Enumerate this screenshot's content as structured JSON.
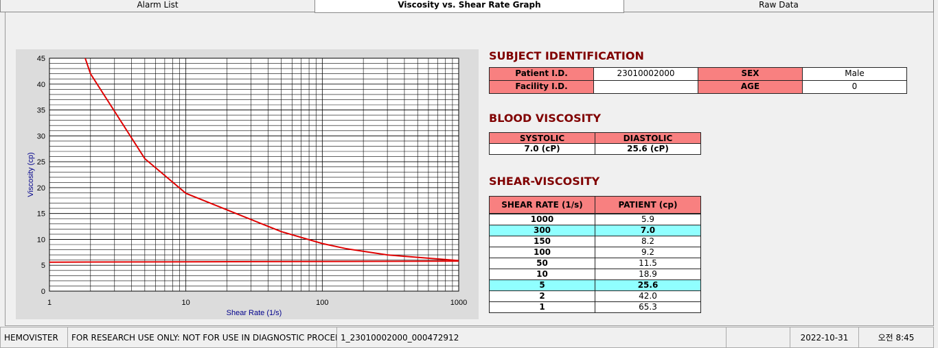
{
  "tabs": {
    "items": [
      "Alarm List",
      "Viscosity vs. Shear Rate Graph",
      "Raw Data"
    ],
    "active": 1
  },
  "chart_data": {
    "type": "line",
    "xlabel": "Shear Rate (1/s)",
    "ylabel": "Viscosity (cp)",
    "xscale": "log",
    "xlim": [
      1,
      1000
    ],
    "xticks": [
      1,
      10,
      100,
      1000
    ],
    "ylim": [
      0,
      45
    ],
    "yticks": [
      0,
      5,
      10,
      15,
      20,
      25,
      30,
      35,
      40,
      45
    ],
    "grid": true,
    "series": [
      {
        "color": "#e00000",
        "x": [
          1,
          2,
          5,
          10,
          50,
          100,
          150,
          300,
          1000
        ],
        "values": [
          65.3,
          42.0,
          25.6,
          18.9,
          11.5,
          9.2,
          8.2,
          7.0,
          5.9
        ]
      },
      {
        "color": "#e00000",
        "x": [
          1,
          1000
        ],
        "values": [
          5.6,
          5.8
        ]
      }
    ]
  },
  "subject": {
    "title": "SUBJECT IDENTIFICATION",
    "fields": [
      {
        "label": "Patient I.D.",
        "value": "23010002000"
      },
      {
        "label": "SEX",
        "value": "Male"
      },
      {
        "label": "Facility I.D."
      },
      {
        "label": "AGE",
        "value": 0
      }
    ]
  },
  "blood": {
    "title": "BLOOD VISCOSITY",
    "headers": [
      "SYSTOLIC",
      "DIASTOLIC"
    ],
    "values": [
      "7.0 (cP)",
      "25.6 (cP)"
    ]
  },
  "shear": {
    "title": "SHEAR-VISCOSITY",
    "headers": [
      "SHEAR RATE (1/s)",
      "PATIENT (cp)"
    ],
    "rows": [
      [
        "1000",
        "5.9"
      ],
      [
        "300",
        "7.0"
      ],
      [
        "150",
        "8.2"
      ],
      [
        "100",
        "9.2"
      ],
      [
        "50",
        "11.5"
      ],
      [
        "10",
        "18.9"
      ],
      [
        "5",
        "25.6"
      ],
      [
        "2",
        "42.0"
      ],
      [
        "1",
        "65.3"
      ]
    ],
    "highlight_rows": [
      1,
      6
    ]
  },
  "status": {
    "cells": [
      "HEMOVISTER",
      "FOR RESEARCH USE ONLY: NOT FOR USE IN DIAGNOSTIC PROCEDURES",
      "1_23010002000_000472912",
      "2022-10-31",
      "오전 8:45"
    ]
  }
}
